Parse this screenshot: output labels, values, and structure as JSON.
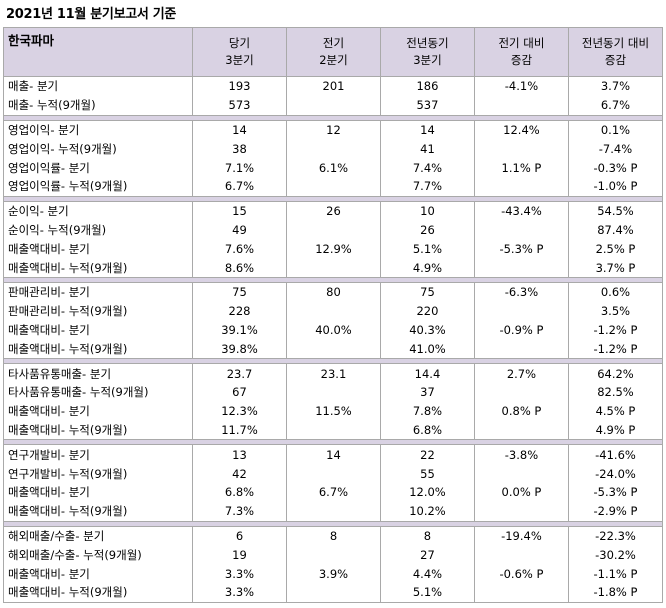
{
  "title": "2021년 11월 분기보고서 기준",
  "company": "한국파마",
  "headers": [
    [
      "당기",
      "3분기"
    ],
    [
      "전기",
      "2분기"
    ],
    [
      "전년동기",
      "3분기"
    ],
    [
      "전기 대비",
      "증감"
    ],
    [
      "전년동기 대비",
      "증감"
    ]
  ],
  "groups": [
    {
      "rows": [
        [
          "매출- 분기",
          "193",
          "201",
          "186",
          "-4.1%",
          "3.7%"
        ],
        [
          "매출- 누적(9개월)",
          "573",
          "",
          "537",
          "",
          "6.7%"
        ]
      ]
    },
    {
      "rows": [
        [
          "영업이익- 분기",
          "14",
          "12",
          "14",
          "12.4%",
          "0.1%"
        ],
        [
          "영업이익- 누적(9개월)",
          "38",
          "",
          "41",
          "",
          "-7.4%"
        ],
        [
          "영업이익률- 분기",
          "7.1%",
          "6.1%",
          "7.4%",
          "1.1% P",
          "-0.3% P"
        ],
        [
          "영업이익률- 누적(9개월)",
          "6.7%",
          "",
          "7.7%",
          "",
          "-1.0% P"
        ]
      ]
    },
    {
      "rows": [
        [
          "순이익- 분기",
          "15",
          "26",
          "10",
          "-43.4%",
          "54.5%"
        ],
        [
          "순이익- 누적(9개월)",
          "49",
          "",
          "26",
          "",
          "87.4%"
        ],
        [
          "매출액대비- 분기",
          "7.6%",
          "12.9%",
          "5.1%",
          "-5.3% P",
          "2.5% P"
        ],
        [
          "매출액대비- 누적(9개월)",
          "8.6%",
          "",
          "4.9%",
          "",
          "3.7% P"
        ]
      ]
    },
    {
      "rows": [
        [
          "판매관리비- 분기",
          "75",
          "80",
          "75",
          "-6.3%",
          "0.6%"
        ],
        [
          "판매관리비- 누적(9개월)",
          "228",
          "",
          "220",
          "",
          "3.5%"
        ],
        [
          "매출액대비- 분기",
          "39.1%",
          "40.0%",
          "40.3%",
          "-0.9% P",
          "-1.2% P"
        ],
        [
          "매출액대비- 누적(9개월)",
          "39.8%",
          "",
          "41.0%",
          "",
          "-1.2% P"
        ]
      ]
    },
    {
      "rows": [
        [
          "타사품유통매출- 분기",
          "23.7",
          "23.1",
          "14.4",
          "2.7%",
          "64.2%"
        ],
        [
          "타사품유통매출- 누적(9개월)",
          "67",
          "",
          "37",
          "",
          "82.5%"
        ],
        [
          "매출액대비- 분기",
          "12.3%",
          "11.5%",
          "7.8%",
          "0.8% P",
          "4.5% P"
        ],
        [
          "매출액대비- 누적(9개월)",
          "11.7%",
          "",
          "6.8%",
          "",
          "4.9% P"
        ]
      ]
    },
    {
      "rows": [
        [
          "연구개발비- 분기",
          "13",
          "14",
          "22",
          "-3.8%",
          "-41.6%"
        ],
        [
          "연구개발비- 누적(9개월)",
          "42",
          "",
          "55",
          "",
          "-24.0%"
        ],
        [
          "매출액대비- 분기",
          "6.8%",
          "6.7%",
          "12.0%",
          "0.0% P",
          "-5.3% P"
        ],
        [
          "매출액대비- 누적(9개월)",
          "7.3%",
          "",
          "10.2%",
          "",
          "-2.9% P"
        ]
      ]
    },
    {
      "rows": [
        [
          "해외매출/수출- 분기",
          "6",
          "8",
          "8",
          "-19.4%",
          "-22.3%"
        ],
        [
          "해외매출/수출- 누적(9개월)",
          "19",
          "",
          "27",
          "",
          "-30.2%"
        ],
        [
          "매출액대비- 분기",
          "3.3%",
          "3.9%",
          "4.4%",
          "-0.6% P",
          "-1.1% P"
        ],
        [
          "매출액대비- 누적(9개월)",
          "3.3%",
          "",
          "5.1%",
          "",
          "-1.8% P"
        ]
      ]
    }
  ]
}
